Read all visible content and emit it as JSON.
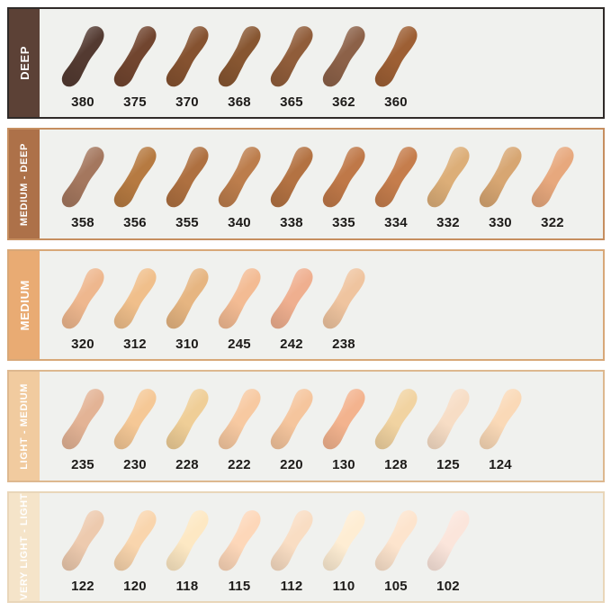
{
  "chart": {
    "background": "#ffffff",
    "row_background": "#f0f1ee",
    "code_text_color": "#1d1b19",
    "rows": [
      {
        "label": "DEEP",
        "band_color": "#5c4136",
        "label_color": "#ffffff",
        "border_color": "#2f2a28",
        "shades": [
          {
            "code": "380",
            "color": "#533a31"
          },
          {
            "code": "375",
            "color": "#71452f"
          },
          {
            "code": "370",
            "color": "#855230"
          },
          {
            "code": "368",
            "color": "#875631"
          },
          {
            "code": "365",
            "color": "#905d3a"
          },
          {
            "code": "362",
            "color": "#8c6148"
          },
          {
            "code": "360",
            "color": "#9d5f34"
          }
        ]
      },
      {
        "label": "MEDIUM - DEEP",
        "band_color": "#ad7149",
        "label_color": "#ffffff",
        "border_color": "#c68e5f",
        "shades": [
          {
            "code": "358",
            "color": "#a4775e"
          },
          {
            "code": "356",
            "color": "#b67a41"
          },
          {
            "code": "355",
            "color": "#ae7040"
          },
          {
            "code": "340",
            "color": "#bc7d4c"
          },
          {
            "code": "338",
            "color": "#b37242"
          },
          {
            "code": "335",
            "color": "#bf7848"
          },
          {
            "code": "334",
            "color": "#c57d4c"
          },
          {
            "code": "332",
            "color": "#dcae78"
          },
          {
            "code": "330",
            "color": "#d7a672"
          },
          {
            "code": "322",
            "color": "#e7a87d"
          }
        ]
      },
      {
        "label": "MEDIUM",
        "band_color": "#e9ab73",
        "label_color": "#ffffff",
        "border_color": "#d8a878",
        "shades": [
          {
            "code": "320",
            "color": "#eeb78e"
          },
          {
            "code": "312",
            "color": "#f0bf8b"
          },
          {
            "code": "310",
            "color": "#e6b581"
          },
          {
            "code": "245",
            "color": "#f3bb93"
          },
          {
            "code": "242",
            "color": "#efaf8f"
          },
          {
            "code": "238",
            "color": "#efc49f"
          }
        ]
      },
      {
        "label": "LIGHT - MEDIUM",
        "band_color": "#f1cb9f",
        "label_color": "#ffffff",
        "border_color": "#ddb88f",
        "shades": [
          {
            "code": "235",
            "color": "#e3b395"
          },
          {
            "code": "230",
            "color": "#f5c896"
          },
          {
            "code": "228",
            "color": "#efce97"
          },
          {
            "code": "222",
            "color": "#f7c9a1"
          },
          {
            "code": "220",
            "color": "#f5c59d"
          },
          {
            "code": "130",
            "color": "#f3b38e"
          },
          {
            "code": "128",
            "color": "#f1d3a1"
          },
          {
            "code": "125",
            "color": "#f7ddc5"
          },
          {
            "code": "124",
            "color": "#fad9b7"
          }
        ]
      },
      {
        "label": "VERY LIGHT - LIGHT",
        "band_color": "#f5e4c9",
        "label_color": "#ffffff",
        "border_color": "#e9d6b9",
        "shades": [
          {
            "code": "122",
            "color": "#edcaae"
          },
          {
            "code": "120",
            "color": "#f9d5ad"
          },
          {
            "code": "118",
            "color": "#fde8c3"
          },
          {
            "code": "115",
            "color": "#fdd7b9"
          },
          {
            "code": "112",
            "color": "#f9ddc3"
          },
          {
            "code": "110",
            "color": "#feedd3"
          },
          {
            "code": "105",
            "color": "#fde4cd"
          },
          {
            "code": "102",
            "color": "#fbe5db"
          }
        ]
      }
    ]
  }
}
